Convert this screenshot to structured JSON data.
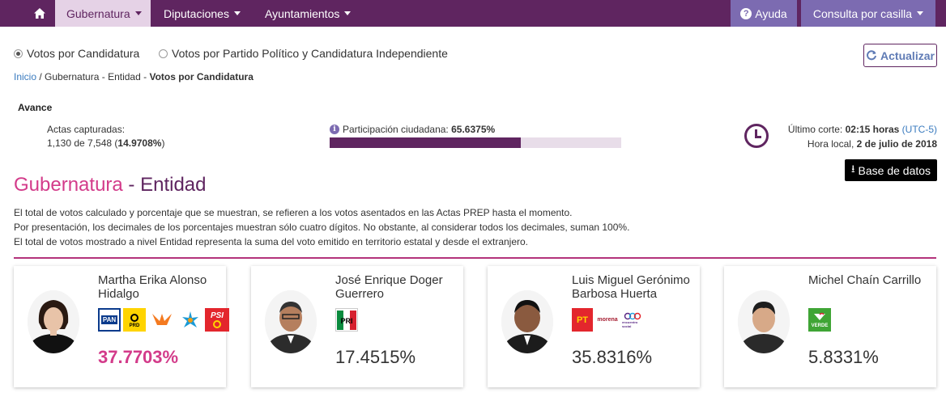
{
  "nav": {
    "home_icon": "home-icon",
    "items": [
      {
        "label": "Gubernatura"
      },
      {
        "label": "Diputaciones"
      },
      {
        "label": "Ayuntamientos"
      }
    ],
    "help_label": "Ayuda",
    "consulta_label": "Consulta por casilla"
  },
  "options": {
    "candidatura": "Votos por Candidatura",
    "partido": "Votos por Partido Político y Candidatura Independiente",
    "refresh_label": "Actualizar"
  },
  "breadcrumb": {
    "home": "Inicio",
    "middle": "/ Gubernatura - Entidad -",
    "current": "Votos por Candidatura"
  },
  "avance": {
    "title": "Avance",
    "actas_label": "Actas capturadas:",
    "actas_count": "1,130 de 7,548 (",
    "actas_pct": "14.9708%",
    "actas_close": ")",
    "participacion_label": "Participación ciudadana:",
    "participacion_value": "65.6375%",
    "participacion_fraction": 0.656375,
    "corte_label": "Último corte:",
    "corte_time": "02:15 horas",
    "corte_tz": "(UTC-5)",
    "local_label": "Hora local,",
    "local_date": "2 de julio de 2018",
    "download_label": "Base de datos"
  },
  "section": {
    "title_a": "Gubernatura",
    "title_sep": " - ",
    "title_b": "Entidad",
    "notes": [
      "El total de votos calculado y porcentaje que se muestran, se refieren a los votos asentados en las Actas PREP hasta el momento.",
      "Por presentación, los decimales de los porcentajes muestran sólo cuatro dígitos. No obstante, al considerar todos los decimales, suman 100%.",
      "El total de votos mostrado a nivel Entidad representa la suma del voto emitido en territorio estatal y desde el extranjero."
    ]
  },
  "candidates": [
    {
      "name": "Martha Erika Alonso Hidalgo",
      "percent": "37.7703%",
      "parties": [
        "PAN",
        "PRD",
        "MC",
        "Compromiso por Puebla",
        "PSI"
      ]
    },
    {
      "name": "José Enrique Doger Guerrero",
      "percent": "17.4515%",
      "parties": [
        "PRI"
      ]
    },
    {
      "name": "Luis Miguel Gerónimo Barbosa Huerta",
      "percent": "35.8316%",
      "parties": [
        "PT",
        "morena",
        "encuentro social"
      ]
    },
    {
      "name": "Michel Chaín Carrillo",
      "percent": "5.8331%",
      "parties": [
        "VERDE"
      ]
    }
  ],
  "colors": {
    "nav_bg": "#5f2560",
    "accent_pink": "#d33b8a",
    "button_bg": "#7c6bb1"
  }
}
